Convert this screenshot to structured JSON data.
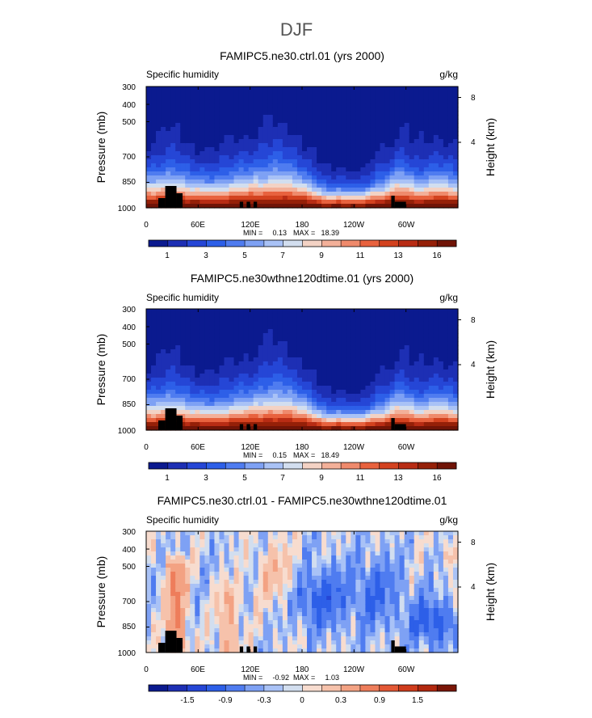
{
  "figure": {
    "title": "DJF"
  },
  "palette": {
    "abs": [
      "#0b1a8f",
      "#1d2fb4",
      "#2546d6",
      "#2d5fe8",
      "#4f7cf0",
      "#7ea1f4",
      "#a9c2f6",
      "#d2deef",
      "#f3d2c4",
      "#f3b099",
      "#ef8a6c",
      "#e8623e",
      "#d3421f",
      "#b82c14",
      "#952008",
      "#701407"
    ],
    "diff": [
      "#0b1a8f",
      "#1d2fb4",
      "#2546d6",
      "#2d5fe8",
      "#4f7cf0",
      "#7ea1f4",
      "#a9c2f6",
      "#d2deef",
      "#f7dccf",
      "#f6c2ab",
      "#f3a283",
      "#ee7d5b",
      "#e35835",
      "#cf3c1c",
      "#b2280f",
      "#7a1507"
    ]
  },
  "chart_data": [
    {
      "type": "heatmap",
      "title": "FAMIPC5.ne30.ctrl.01 (yrs 2000)",
      "variable": "Specific humidity",
      "units": "g/kg",
      "ylabel": "Pressure (mb)",
      "ylabel_right": "Height (km)",
      "xticks": [
        "0",
        "60E",
        "120E",
        "180",
        "120W",
        "60W"
      ],
      "yticks": [
        "300",
        "400",
        "500",
        "700",
        "850",
        "1000"
      ],
      "yticks_right": [
        "8",
        "4"
      ],
      "min_label": "MIN =",
      "min_value": "0.13",
      "max_label": "MAX =",
      "max_value": "18.39",
      "colorbar_labels": [
        "1",
        "3",
        "5",
        "7",
        "9",
        "11",
        "13",
        "16"
      ],
      "field": "abs"
    },
    {
      "type": "heatmap",
      "title": "FAMIPC5.ne30wthne120dtime.01 (yrs 2000)",
      "variable": "Specific humidity",
      "units": "g/kg",
      "ylabel": "Pressure (mb)",
      "ylabel_right": "Height (km)",
      "xticks": [
        "0",
        "60E",
        "120E",
        "180",
        "120W",
        "60W"
      ],
      "yticks": [
        "300",
        "400",
        "500",
        "700",
        "850",
        "1000"
      ],
      "yticks_right": [
        "8",
        "4"
      ],
      "min_label": "MIN =",
      "min_value": "0.15",
      "max_label": "MAX =",
      "max_value": "18.49",
      "colorbar_labels": [
        "1",
        "3",
        "5",
        "7",
        "9",
        "11",
        "13",
        "16"
      ],
      "field": "abs"
    },
    {
      "type": "heatmap",
      "title": "FAMIPC5.ne30.ctrl.01 - FAMIPC5.ne30wthne120dtime.01",
      "variable": "Specific humidity",
      "units": "g/kg",
      "ylabel": "Pressure (mb)",
      "ylabel_right": "Height (km)",
      "xticks": [
        "0",
        "60E",
        "120E",
        "180",
        "120W",
        "60W"
      ],
      "yticks": [
        "300",
        "400",
        "500",
        "700",
        "850",
        "1000"
      ],
      "yticks_right": [
        "8",
        "4"
      ],
      "min_label": "MIN =",
      "min_value": "-0.92",
      "max_label": "MAX =",
      "max_value": "1.03",
      "colorbar_labels": [
        "-1.5",
        "-0.9",
        "-0.3",
        "0",
        "0.3",
        "0.9",
        "1.5"
      ],
      "field": "diff"
    }
  ]
}
